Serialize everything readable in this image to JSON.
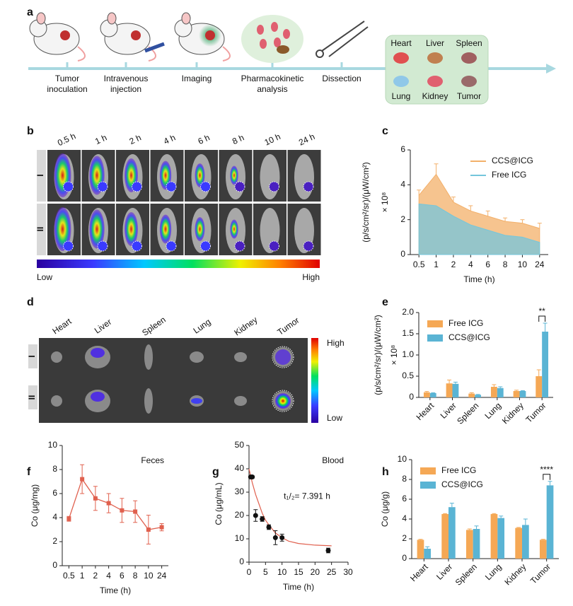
{
  "panel_labels": [
    "a",
    "b",
    "c",
    "d",
    "e",
    "f",
    "g",
    "h"
  ],
  "schematic": {
    "steps": [
      [
        "Tumor",
        "inoculation"
      ],
      [
        "Intravenous",
        "injection"
      ],
      [
        "Imaging"
      ],
      [
        "Pharmacokinetic",
        "analysis"
      ],
      [
        "Dissection"
      ]
    ],
    "organs": [
      "Heart",
      "Liver",
      "Spleen",
      "Lung",
      "Kidney",
      "Tumor"
    ]
  },
  "imaging": {
    "times": [
      "0.5 h",
      "1 h",
      "2 h",
      "4 h",
      "6 h",
      "8 h",
      "10 h",
      "24 h"
    ],
    "rows": [
      "I",
      "II"
    ],
    "colorbar": [
      "Low",
      "High"
    ]
  },
  "ex_vivo": {
    "organs": [
      "Heart",
      "Liver",
      "Spleen",
      "Lung",
      "Kidney",
      "Tumor"
    ],
    "rows": [
      "I",
      "II"
    ],
    "colorbar": [
      "High",
      "Low"
    ]
  },
  "chart_data": [
    {
      "type": "area",
      "x_label": "Time (h)",
      "y_label": "(p/s/cm²/sr)/(μW/cm²)",
      "y_multiplier": "× 10⁸",
      "categories": [
        "0.5",
        "1",
        "2",
        "4",
        "6",
        "8",
        "10",
        "24"
      ],
      "series": [
        {
          "name": "CCS@ICG",
          "color": "#f3b06a",
          "values": [
            3.4,
            4.6,
            3.0,
            2.5,
            2.2,
            1.9,
            1.8,
            1.5
          ],
          "errors": [
            0.3,
            0.6,
            0.3,
            0.3,
            0.3,
            0.2,
            0.2,
            0.3
          ]
        },
        {
          "name": "Free ICG",
          "color": "#74c6dc",
          "values": [
            2.9,
            2.8,
            2.2,
            1.7,
            1.4,
            1.1,
            1.0,
            0.7
          ]
        }
      ],
      "ylim": [
        0,
        6
      ],
      "yticks": [
        0,
        2,
        4,
        6
      ],
      "legend": "upper right"
    },
    {
      "type": "bar",
      "y_label": "(p/s/cm²/sr)/(μW/cm²)",
      "y_multiplier": "× 10⁸",
      "categories": [
        "Heart",
        "Liver",
        "Spleen",
        "Lung",
        "Kidney",
        "Tumor"
      ],
      "series": [
        {
          "name": "Free ICG",
          "color": "#f5a855",
          "values": [
            0.12,
            0.33,
            0.09,
            0.25,
            0.15,
            0.5
          ],
          "errors": [
            0.02,
            0.08,
            0.02,
            0.05,
            0.02,
            0.15
          ]
        },
        {
          "name": "CCS@ICG",
          "color": "#5ab4d4",
          "values": [
            0.1,
            0.32,
            0.06,
            0.22,
            0.15,
            1.55
          ],
          "errors": [
            0.01,
            0.04,
            0.01,
            0.03,
            0.01,
            0.2
          ]
        }
      ],
      "ylim": [
        0,
        2
      ],
      "yticks": [
        0,
        0.5,
        {
          "value": 1,
          "label": "1.0"
        },
        1.5,
        {
          "value": 2,
          "label": "2.0"
        }
      ],
      "significance": "**",
      "legend": "upper left"
    },
    {
      "type": "line",
      "annotation": "Feces",
      "x_label": "Time (h)",
      "y_label": "Co (μg/mg)",
      "categories": [
        "0.5",
        "1",
        "2",
        "4",
        "6",
        "8",
        "10",
        "24"
      ],
      "series": [
        {
          "color": "#e0604e",
          "values": [
            3.9,
            7.2,
            5.6,
            5.2,
            4.6,
            4.5,
            3.0,
            3.2
          ],
          "errors": [
            0.2,
            1.2,
            1.0,
            0.8,
            1.0,
            0.9,
            1.2,
            0.3
          ]
        }
      ],
      "ylim": [
        0,
        10
      ],
      "yticks": [
        0,
        2,
        4,
        6,
        8,
        10
      ]
    },
    {
      "type": "scatter",
      "annotation": "Blood",
      "fit_label": "t₁/₂= 7.391 h",
      "x_label": "Time (h)",
      "y_label": "Co (μg/mL)",
      "x": [
        0.5,
        1,
        2,
        4,
        6,
        8,
        10,
        24
      ],
      "values": [
        36.5,
        36.5,
        20,
        18.5,
        15,
        10.5,
        10.5,
        5
      ],
      "errors": [
        0.5,
        0.5,
        2.5,
        1,
        1,
        3,
        1.5,
        1
      ],
      "color": "#111111",
      "fit": {
        "color": "#e0604e",
        "x": [
          0,
          1,
          2,
          3,
          4,
          5,
          6,
          8,
          10,
          12,
          15,
          20,
          25
        ],
        "values": [
          40,
          34,
          29,
          25,
          21,
          18,
          16,
          12.5,
          10.5,
          9,
          8,
          7.3,
          7
        ]
      },
      "xlim": [
        0,
        30
      ],
      "xticks": [
        0,
        5,
        10,
        15,
        20,
        25,
        30
      ],
      "ylim": [
        0,
        50
      ],
      "yticks": [
        0,
        10,
        20,
        30,
        40,
        50
      ]
    },
    {
      "type": "bar",
      "y_label": "Co (μg/g)",
      "categories": [
        "Heart",
        "Liver",
        "Spleen",
        "Lung",
        "Kidney",
        "Tumor"
      ],
      "series": [
        {
          "name": "Free ICG",
          "color": "#f5a855",
          "values": [
            1.9,
            4.5,
            2.9,
            4.5,
            3.1,
            1.9
          ],
          "errors": [
            0.05,
            0.05,
            0.1,
            0.05,
            0.05,
            0.05
          ]
        },
        {
          "name": "CCS@ICG",
          "color": "#5ab4d4",
          "values": [
            1.0,
            5.2,
            3.0,
            4.1,
            3.4,
            7.4
          ],
          "errors": [
            0.2,
            0.4,
            0.3,
            0.2,
            0.6,
            0.4
          ]
        }
      ],
      "ylim": [
        0,
        10
      ],
      "yticks": [
        0,
        2,
        4,
        6,
        8,
        10
      ],
      "significance": "****",
      "legend": "upper left"
    }
  ]
}
